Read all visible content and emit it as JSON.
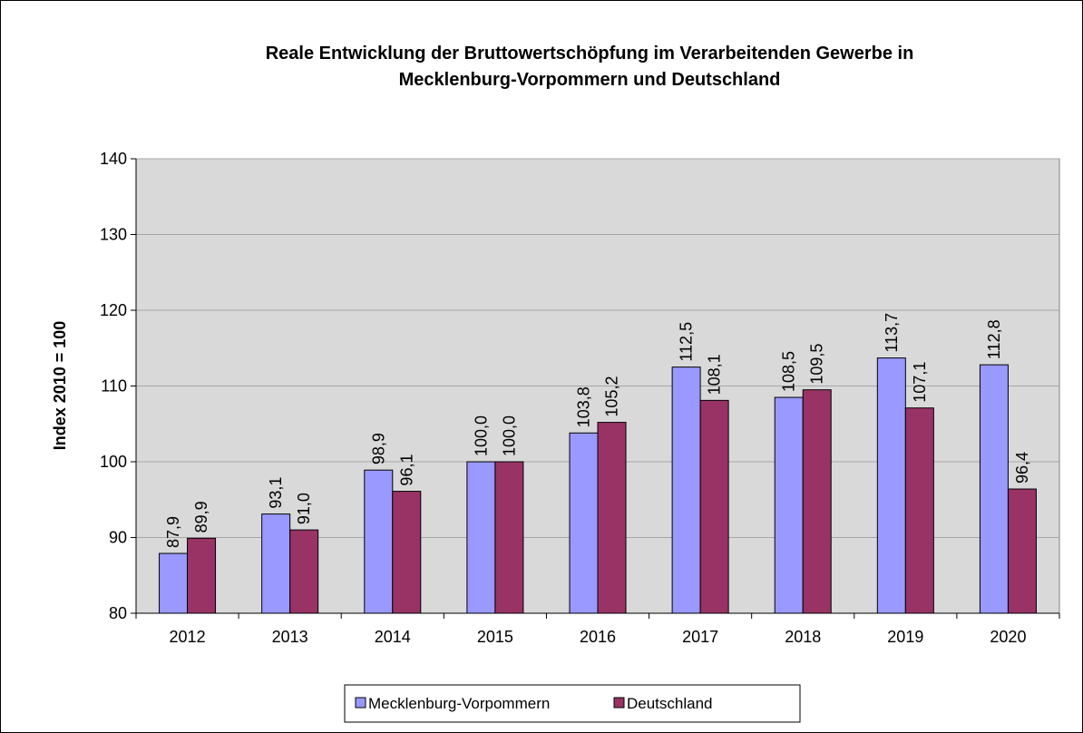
{
  "chart_data": {
    "type": "bar",
    "title": [
      "Reale Entwicklung der Bruttowertschöpfung im Verarbeitenden Gewerbe in",
      "Mecklenburg-Vorpommern und Deutschland"
    ],
    "y_label": "Index 2010 = 100",
    "categories": [
      "2012",
      "2013",
      "2014",
      "2015",
      "2016",
      "2017",
      "2018",
      "2019",
      "2020"
    ],
    "series": [
      {
        "name": "Mecklenburg-Vorpommern",
        "color": "#9999ff",
        "values": [
          87.9,
          93.1,
          98.9,
          100.0,
          103.8,
          112.5,
          108.5,
          113.7,
          112.8
        ],
        "value_labels": [
          "87,9",
          "93,1",
          "98,9",
          "100,0",
          "103,8",
          "112,5",
          "108,5",
          "113,7",
          "112,8"
        ]
      },
      {
        "name": "Deutschland",
        "color": "#993366",
        "values": [
          89.9,
          91.0,
          96.1,
          100.0,
          105.2,
          108.1,
          109.5,
          107.1,
          96.4
        ],
        "value_labels": [
          "89,9",
          "91,0",
          "96,1",
          "100,0",
          "105,2",
          "108,1",
          "109,5",
          "107,1",
          "96,4"
        ]
      }
    ],
    "ylim": [
      80,
      140
    ],
    "yticks": [
      80,
      90,
      100,
      110,
      120,
      130,
      140
    ],
    "grid": true,
    "legend": "bottom"
  }
}
